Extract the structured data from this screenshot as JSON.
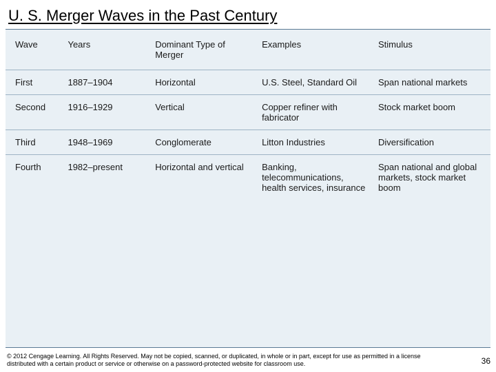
{
  "title": "U. S. Merger Waves in the Past Century",
  "table": {
    "columns": [
      "Wave",
      "Years",
      "Dominant Type of Merger",
      "Examples",
      "Stimulus"
    ],
    "rows": [
      {
        "wave": "First",
        "years": "1887–1904",
        "type": "Horizontal",
        "examples": "U.S. Steel, Standard Oil",
        "stimulus": "Span national markets"
      },
      {
        "wave": "Second",
        "years": "1916–1929",
        "type": "Vertical",
        "examples": "Copper refiner with fabricator",
        "stimulus": "Stock market boom"
      },
      {
        "wave": "Third",
        "years": "1948–1969",
        "type": "Conglomerate",
        "examples": "Litton Industries",
        "stimulus": "Diversification"
      },
      {
        "wave": "Fourth",
        "years": "1982–present",
        "type": "Horizontal and vertical",
        "examples": "Banking, telecommunications, health services, insurance",
        "stimulus": "Span national and global markets, stock market boom"
      }
    ]
  },
  "footer": {
    "copyright": "© 2012 Cengage Learning. All Rights Reserved. May not be copied, scanned, or duplicated, in whole or in part, except for use as permitted in a license distributed with a certain product or service or otherwise on a password-protected website for classroom use.",
    "page_number": "36"
  },
  "colors": {
    "table_bg": "#e9f0f5",
    "row_border": "#9db3c4",
    "outer_border": "#5a7a94"
  }
}
